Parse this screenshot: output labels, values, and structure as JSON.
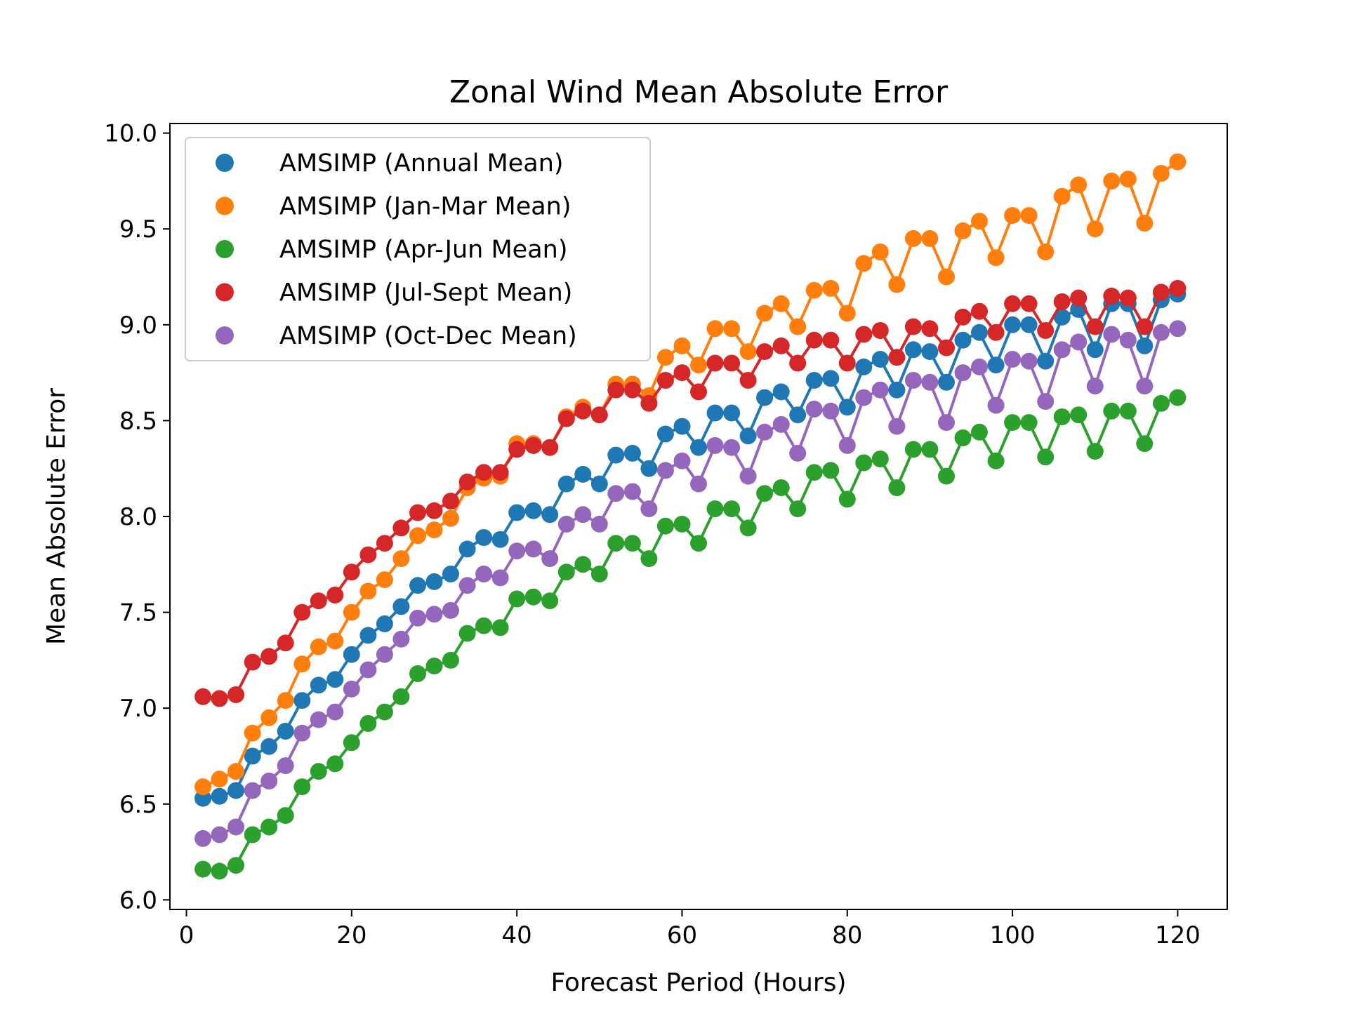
{
  "chart_data": {
    "type": "line",
    "title": "Zonal Wind Mean Absolute Error",
    "xlabel": "Forecast Period (Hours)",
    "ylabel": "Mean Absolute Error",
    "xlim": [
      -2,
      126
    ],
    "ylim": [
      5.95,
      10.05
    ],
    "x_ticks": [
      "0",
      "20",
      "40",
      "60",
      "80",
      "100",
      "120"
    ],
    "y_ticks": [
      "6.0",
      "6.5",
      "7.0",
      "7.5",
      "8.0",
      "8.5",
      "9.0",
      "9.5",
      "10.0"
    ],
    "legend_position": "upper-left",
    "grid": false,
    "x": [
      2,
      4,
      6,
      8,
      10,
      12,
      14,
      16,
      18,
      20,
      22,
      24,
      26,
      28,
      30,
      32,
      34,
      36,
      38,
      40,
      42,
      44,
      46,
      48,
      50,
      52,
      54,
      56,
      58,
      60,
      62,
      64,
      66,
      68,
      70,
      72,
      74,
      76,
      78,
      80,
      82,
      84,
      86,
      88,
      90,
      92,
      94,
      96,
      98,
      100,
      102,
      104,
      106,
      108,
      110,
      112,
      114,
      116,
      118,
      120
    ],
    "series": [
      {
        "name": "AMSIMP (Annual Mean)",
        "color": "#1f77b4",
        "values": [
          6.53,
          6.54,
          6.57,
          6.75,
          6.8,
          6.88,
          7.04,
          7.12,
          7.15,
          7.28,
          7.38,
          7.44,
          7.53,
          7.64,
          7.66,
          7.7,
          7.83,
          7.89,
          7.88,
          8.02,
          8.03,
          8.01,
          8.17,
          8.22,
          8.17,
          8.32,
          8.33,
          8.25,
          8.43,
          8.47,
          8.36,
          8.54,
          8.54,
          8.42,
          8.62,
          8.65,
          8.53,
          8.71,
          8.72,
          8.57,
          8.78,
          8.82,
          8.66,
          8.87,
          8.86,
          8.7,
          8.92,
          8.96,
          8.79,
          9.0,
          9.0,
          8.81,
          9.04,
          9.08,
          8.87,
          9.11,
          9.11,
          8.89,
          9.13,
          9.16
        ]
      },
      {
        "name": "AMSIMP (Jan-Mar Mean)",
        "color": "#ff7f0e",
        "values": [
          6.59,
          6.63,
          6.67,
          6.87,
          6.95,
          7.04,
          7.23,
          7.32,
          7.35,
          7.5,
          7.61,
          7.67,
          7.78,
          7.9,
          7.93,
          7.99,
          8.15,
          8.2,
          8.21,
          8.38,
          8.38,
          8.36,
          8.52,
          8.57,
          8.53,
          8.69,
          8.69,
          8.63,
          8.83,
          8.89,
          8.79,
          8.98,
          8.98,
          8.86,
          9.06,
          9.11,
          8.99,
          9.18,
          9.19,
          9.06,
          9.32,
          9.38,
          9.21,
          9.45,
          9.45,
          9.25,
          9.49,
          9.54,
          9.35,
          9.57,
          9.57,
          9.38,
          9.67,
          9.73,
          9.5,
          9.75,
          9.76,
          9.53,
          9.79,
          9.85
        ]
      },
      {
        "name": "AMSIMP (Apr-Jun Mean)",
        "color": "#2ca02c",
        "values": [
          6.16,
          6.15,
          6.18,
          6.34,
          6.38,
          6.44,
          6.59,
          6.67,
          6.71,
          6.82,
          6.92,
          6.98,
          7.06,
          7.18,
          7.22,
          7.25,
          7.39,
          7.43,
          7.42,
          7.57,
          7.58,
          7.56,
          7.71,
          7.75,
          7.7,
          7.86,
          7.86,
          7.78,
          7.95,
          7.96,
          7.86,
          8.04,
          8.04,
          7.94,
          8.12,
          8.15,
          8.04,
          8.23,
          8.24,
          8.09,
          8.28,
          8.3,
          8.15,
          8.35,
          8.35,
          8.21,
          8.41,
          8.44,
          8.29,
          8.49,
          8.49,
          8.31,
          8.52,
          8.53,
          8.34,
          8.55,
          8.55,
          8.38,
          8.59,
          8.62
        ]
      },
      {
        "name": "AMSIMP (Jul-Sept Mean)",
        "color": "#d62728",
        "values": [
          7.06,
          7.05,
          7.07,
          7.24,
          7.27,
          7.34,
          7.5,
          7.56,
          7.59,
          7.71,
          7.8,
          7.86,
          7.94,
          8.02,
          8.03,
          8.08,
          8.18,
          8.23,
          8.23,
          8.35,
          8.37,
          8.36,
          8.51,
          8.55,
          8.53,
          8.66,
          8.66,
          8.59,
          8.71,
          8.75,
          8.65,
          8.8,
          8.8,
          8.71,
          8.86,
          8.89,
          8.8,
          8.92,
          8.92,
          8.8,
          8.95,
          8.97,
          8.83,
          8.99,
          8.98,
          8.88,
          9.04,
          9.07,
          8.96,
          9.11,
          9.11,
          8.97,
          9.12,
          9.14,
          8.99,
          9.15,
          9.14,
          8.99,
          9.17,
          9.19
        ]
      },
      {
        "name": "AMSIMP (Oct-Dec Mean)",
        "color": "#9467bd",
        "values": [
          6.32,
          6.34,
          6.38,
          6.57,
          6.62,
          6.7,
          6.87,
          6.94,
          6.98,
          7.1,
          7.2,
          7.28,
          7.36,
          7.47,
          7.49,
          7.51,
          7.64,
          7.7,
          7.68,
          7.82,
          7.83,
          7.78,
          7.96,
          8.01,
          7.96,
          8.12,
          8.13,
          8.04,
          8.24,
          8.29,
          8.17,
          8.37,
          8.36,
          8.21,
          8.44,
          8.48,
          8.33,
          8.56,
          8.55,
          8.37,
          8.62,
          8.66,
          8.47,
          8.71,
          8.7,
          8.49,
          8.75,
          8.78,
          8.58,
          8.82,
          8.81,
          8.6,
          8.87,
          8.91,
          8.68,
          8.95,
          8.92,
          8.68,
          8.96,
          8.98
        ]
      }
    ]
  }
}
